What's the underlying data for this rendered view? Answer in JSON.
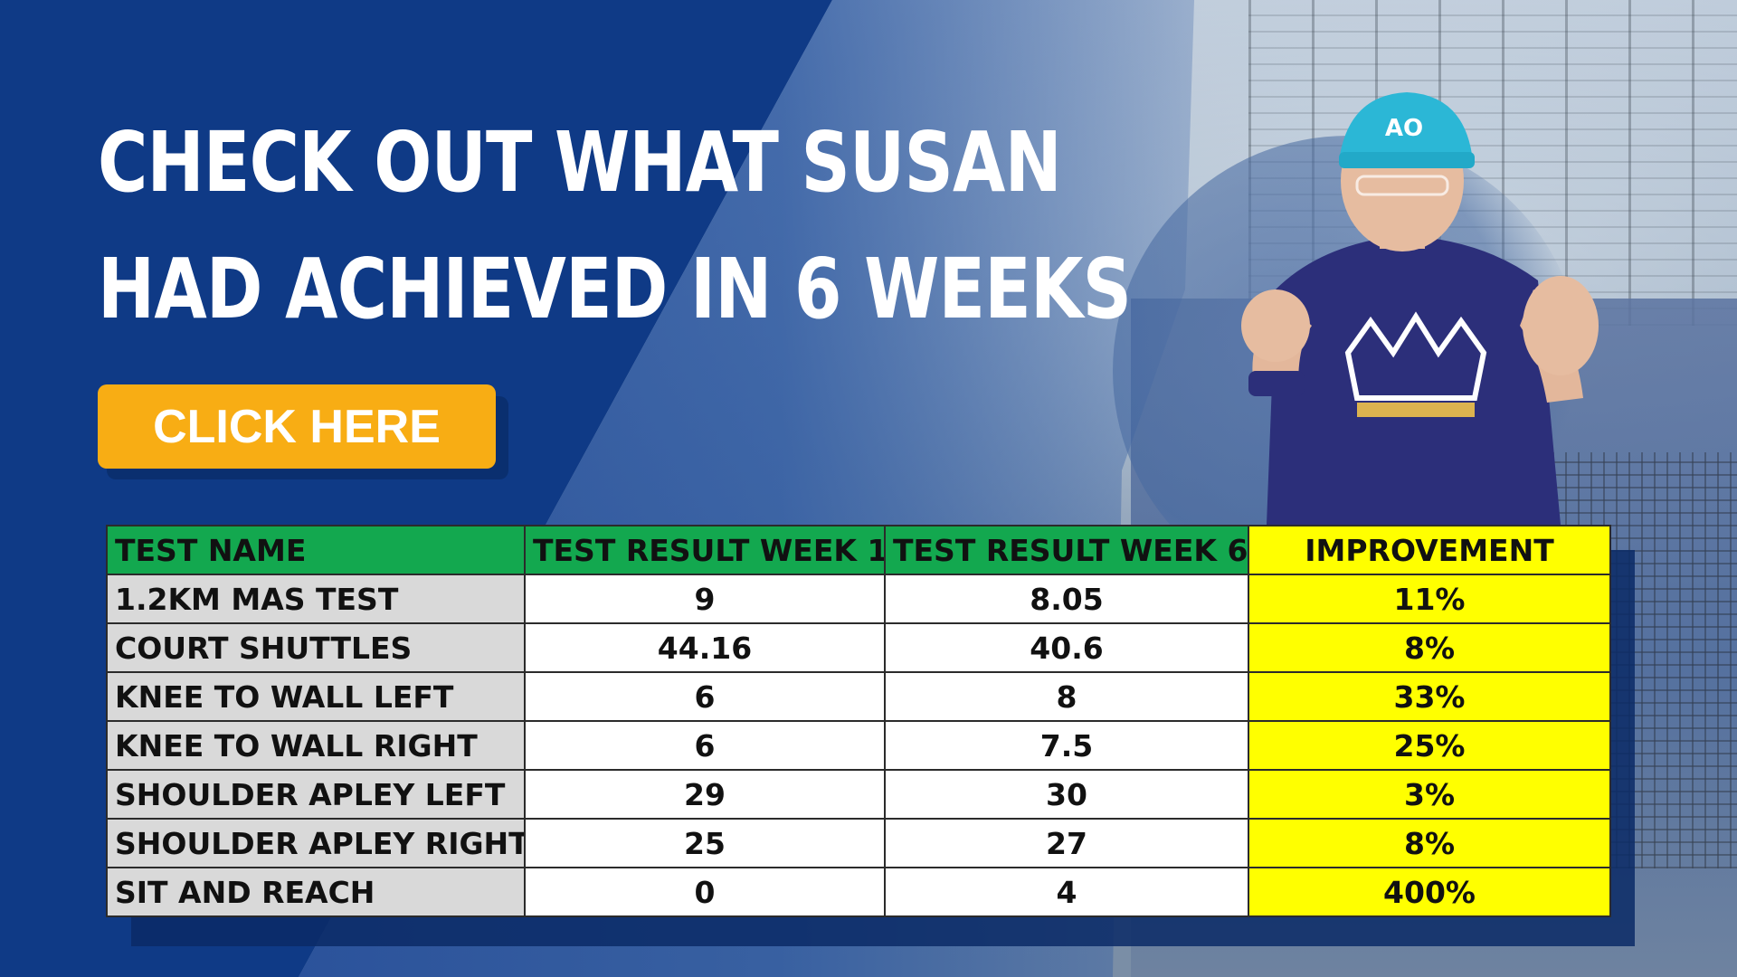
{
  "headline": {
    "line1": "CHECK OUT WHAT SUSAN",
    "line2": "HAD ACHIEVED IN 6 WEEKS"
  },
  "cta": {
    "label": "CLICK HERE"
  },
  "table": {
    "headers": [
      "TEST NAME",
      "TEST RESULT WEEK 1",
      "TEST RESULT WEEK 6",
      "IMPROVEMENT"
    ],
    "rows": [
      [
        "1.2KM MAS TEST",
        "9",
        "8.05",
        "11%"
      ],
      [
        "COURT SHUTTLES",
        "44.16",
        "40.6",
        "8%"
      ],
      [
        "KNEE TO WALL LEFT",
        "6",
        "8",
        "33%"
      ],
      [
        "KNEE TO WALL RIGHT",
        "6",
        "7.5",
        "25%"
      ],
      [
        "SHOULDER APLEY LEFT",
        "29",
        "30",
        "3%"
      ],
      [
        "SHOULDER APLEY RIGHT",
        "25",
        "27",
        "8%"
      ],
      [
        "SIT AND REACH",
        "0",
        "4",
        "400%"
      ]
    ]
  },
  "colors": {
    "background_blue": "#0f3a86",
    "button_orange": "#f8ad14",
    "header_green": "#13a84f",
    "improvement_yellow": "#ffff00",
    "name_cell_gray": "#d9d9d9"
  },
  "icons": [
    "coach-photo",
    "cap-logo-icon"
  ]
}
